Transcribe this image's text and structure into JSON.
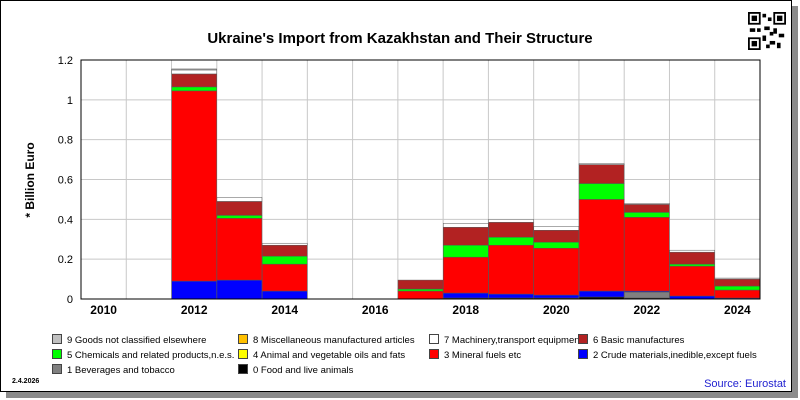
{
  "chart_data": {
    "type": "bar",
    "stacked": true,
    "title": "Ukraine's Import from Kazakhstan and Their Structure",
    "ylabel": "* Billion Euro",
    "xlabel": "",
    "ylim": [
      0,
      1.2
    ],
    "yticks": [
      "0",
      "0.2",
      "0.4",
      "0.6",
      "0.8",
      "1",
      "1.2"
    ],
    "categories": [
      "2010",
      "2011",
      "2012",
      "2013",
      "2014",
      "2015",
      "2016",
      "2017",
      "2018",
      "2019",
      "2020",
      "2021",
      "2022",
      "2023",
      "2024"
    ],
    "xtick_labels": [
      "2010",
      "",
      "2012",
      "",
      "2014",
      "",
      "2016",
      "",
      "2018",
      "",
      "2020",
      "",
      "2022",
      "",
      "2024"
    ],
    "grid": true,
    "series": [
      {
        "name": "0 Food and live animals",
        "color": "#000000",
        "values": [
          0,
          0,
          0,
          0,
          0,
          0,
          0,
          0,
          0.005,
          0.005,
          0.005,
          0.01,
          0.005,
          0,
          0
        ]
      },
      {
        "name": "1 Beverages and tobacco",
        "color": "#808080",
        "values": [
          0,
          0,
          0,
          0,
          0,
          0,
          0,
          0,
          0,
          0,
          0,
          0,
          0.03,
          0,
          0
        ]
      },
      {
        "name": "2 Crude materials,inedible,except fuels",
        "color": "#0000ff",
        "values": [
          0,
          0,
          0.09,
          0.095,
          0.04,
          0,
          0,
          0,
          0.025,
          0.02,
          0.015,
          0.03,
          0.005,
          0.015,
          0.005
        ]
      },
      {
        "name": "3 Mineral fuels etc",
        "color": "#ff0000",
        "values": [
          0,
          0,
          0.955,
          0.31,
          0.135,
          0,
          0,
          0.04,
          0.18,
          0.245,
          0.235,
          0.46,
          0.37,
          0.15,
          0.04
        ]
      },
      {
        "name": "4 Animal and vegetable oils and fats",
        "color": "#ffff00",
        "values": [
          0,
          0,
          0,
          0,
          0,
          0,
          0,
          0,
          0,
          0,
          0,
          0,
          0,
          0,
          0
        ]
      },
      {
        "name": "5 Chemicals and related products,n.e.s.",
        "color": "#00ff00",
        "values": [
          0,
          0,
          0.02,
          0.015,
          0.04,
          0,
          0,
          0.01,
          0.06,
          0.04,
          0.03,
          0.08,
          0.025,
          0.01,
          0.02
        ]
      },
      {
        "name": "6 Basic manufactures",
        "color": "#b22222",
        "values": [
          0,
          0,
          0.065,
          0.07,
          0.055,
          0,
          0,
          0.045,
          0.09,
          0.075,
          0.06,
          0.095,
          0.04,
          0.06,
          0.035
        ]
      },
      {
        "name": "7 Machinery,transport equipment",
        "color": "#ffffff",
        "values": [
          0,
          0,
          0.02,
          0.02,
          0.01,
          0,
          0,
          0,
          0.02,
          0.015,
          0.02,
          0.005,
          0.005,
          0.01,
          0.005
        ]
      },
      {
        "name": "8 Miscellaneous manufactured articles",
        "color": "#ffc000",
        "values": [
          0,
          0,
          0,
          0,
          0,
          0,
          0,
          0,
          0,
          0,
          0,
          0,
          0,
          0,
          0
        ]
      },
      {
        "name": "9 Goods not classified elsewhere",
        "color": "#c0c0c0",
        "values": [
          0,
          0,
          0.005,
          0,
          0,
          0,
          0,
          0,
          0,
          0,
          0,
          0,
          0,
          0,
          0
        ]
      }
    ],
    "legend_order": [
      9,
      8,
      7,
      6,
      5,
      4,
      3,
      2,
      1,
      0
    ]
  },
  "footer": {
    "date": "2.4.2026",
    "source": "Source: Eurostat"
  },
  "icons": {
    "qr": "qr-code-icon"
  }
}
